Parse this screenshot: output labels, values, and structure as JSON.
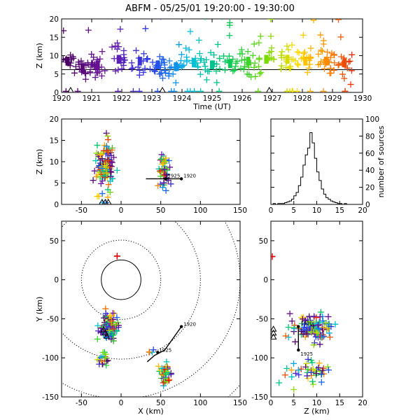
{
  "title": "ABFM - 05/25/01 19:20:00 - 19:30:00",
  "chart_data": [
    {
      "id": "time_height",
      "type": "scatter",
      "xlabel": "Time (UT)",
      "ylabel": "Z (km)",
      "xlim": [
        1920,
        1930
      ],
      "ylim": [
        0,
        20
      ],
      "xticks": [
        "1920",
        "1921",
        "1922",
        "1923",
        "1924",
        "1925",
        "1926",
        "1927",
        "1928",
        "1929",
        "1930"
      ],
      "yticks": [
        "0",
        "5",
        "10",
        "15",
        "20"
      ],
      "reference_line_y": 6.2,
      "marker": "plus",
      "color_by_time": true,
      "station_markers_x": [
        1920.3,
        1923.35,
        1926.9
      ],
      "station_markers_y": 0,
      "clusters": [
        {
          "t": 1920.2,
          "z": 8.5,
          "spread": 1.2,
          "n": 14
        },
        {
          "t": 1920.7,
          "z": 6.5,
          "spread": 1.6,
          "n": 18
        },
        {
          "t": 1921.2,
          "z": 7.5,
          "spread": 2.0,
          "n": 24
        },
        {
          "t": 1921.9,
          "z": 9.0,
          "spread": 2.3,
          "n": 26
        },
        {
          "t": 1922.6,
          "z": 8.5,
          "spread": 2.0,
          "n": 20
        },
        {
          "t": 1923.2,
          "z": 7.5,
          "spread": 2.0,
          "n": 22
        },
        {
          "t": 1923.8,
          "z": 7.0,
          "spread": 1.8,
          "n": 20
        },
        {
          "t": 1924.4,
          "z": 8.0,
          "spread": 2.0,
          "n": 22
        },
        {
          "t": 1925.0,
          "z": 7.5,
          "spread": 2.0,
          "n": 20
        },
        {
          "t": 1925.6,
          "z": 7.8,
          "spread": 1.8,
          "n": 16
        },
        {
          "t": 1926.2,
          "z": 8.5,
          "spread": 2.0,
          "n": 22
        },
        {
          "t": 1926.8,
          "z": 9.0,
          "spread": 2.2,
          "n": 20
        },
        {
          "t": 1927.5,
          "z": 9.0,
          "spread": 2.0,
          "n": 22
        },
        {
          "t": 1928.1,
          "z": 8.5,
          "spread": 2.0,
          "n": 24
        },
        {
          "t": 1928.8,
          "z": 8.5,
          "spread": 2.2,
          "n": 30
        },
        {
          "t": 1929.4,
          "z": 8.0,
          "spread": 2.2,
          "n": 22
        }
      ]
    },
    {
      "id": "x_height",
      "type": "scatter",
      "xlabel": "",
      "ylabel": "Z (km)",
      "xlim": [
        -75,
        150
      ],
      "ylim": [
        0,
        20
      ],
      "xticks": [
        "-50",
        "0",
        "50",
        "100",
        "150"
      ],
      "yticks": [
        "0",
        "5",
        "10",
        "15",
        "20"
      ],
      "marker": "plus",
      "clusters": [
        {
          "x": -20,
          "z": 8.5,
          "sx": 6,
          "sz": 3.2,
          "n": 120
        },
        {
          "x": 55,
          "z": 7.5,
          "sx": 4,
          "sz": 2.5,
          "n": 50
        }
      ],
      "track_x": [
        56,
        76
      ],
      "track_z": [
        6.0,
        6.0
      ],
      "track_labels": [
        "1925",
        "1920"
      ],
      "station_markers_x": [
        -24,
        -20,
        -16
      ]
    },
    {
      "id": "height_histogram",
      "type": "bar",
      "xlabel": "",
      "ylabel": "number of sources",
      "xlim": [
        0,
        20
      ],
      "ylim": [
        0,
        100
      ],
      "xticks": [
        "0",
        "5",
        "10",
        "15",
        "20"
      ],
      "yticks": [
        "0",
        "20",
        "40",
        "60",
        "80",
        "100"
      ],
      "bin_width": 0.5,
      "bin_start": 0,
      "counts": [
        0,
        1,
        0,
        1,
        1,
        1,
        2,
        3,
        4,
        6,
        10,
        14,
        22,
        32,
        46,
        58,
        66,
        84,
        72,
        54,
        38,
        28,
        18,
        12,
        8,
        6,
        4,
        3,
        2,
        1,
        1,
        0,
        1,
        0,
        0,
        0,
        0,
        0,
        0,
        0
      ]
    },
    {
      "id": "plan_view",
      "type": "scatter",
      "xlabel": "X (km)",
      "ylabel": "Y (km)",
      "xlim": [
        -75,
        150
      ],
      "ylim": [
        -150,
        75
      ],
      "xticks": [
        "-50",
        "0",
        "50",
        "100",
        "150"
      ],
      "yticks": [
        "-150",
        "-100",
        "-50",
        "0",
        "50"
      ],
      "range_rings_km": [
        25,
        50,
        100,
        150,
        200
      ],
      "ring_solid_km": 25,
      "marker": "plus",
      "clusters": [
        {
          "x": -15,
          "y": -62,
          "sx": 5,
          "sy": 9,
          "n": 110
        },
        {
          "x": -22,
          "y": -102,
          "sx": 4,
          "sy": 5,
          "n": 18
        },
        {
          "x": 56,
          "y": -120,
          "sx": 4,
          "sy": 7,
          "n": 40
        },
        {
          "x": 35,
          "y": -92,
          "sx": 4,
          "sy": 3,
          "n": 4
        },
        {
          "x": -5,
          "y": 30,
          "sx": 0.5,
          "sy": 0.5,
          "n": 2
        }
      ],
      "track_x": [
        33,
        42,
        55,
        76
      ],
      "track_y": [
        -105,
        -97,
        -90,
        -60
      ],
      "track_labels": [
        "1925",
        "1920"
      ],
      "station_markers_x": [
        -22,
        -20,
        -18
      ],
      "station_markers_y": [
        -66,
        -70,
        -74
      ]
    },
    {
      "id": "z_y_view",
      "type": "scatter",
      "xlabel": "Z (km)",
      "ylabel": "",
      "xlim": [
        0,
        20
      ],
      "ylim": [
        -150,
        75
      ],
      "xticks": [
        "0",
        "5",
        "10",
        "15",
        "20"
      ],
      "yticks": [
        "-150",
        "-100",
        "-50",
        "0",
        "50"
      ],
      "marker": "plus",
      "clusters": [
        {
          "z": 9.0,
          "y": -62,
          "sz": 2.3,
          "sy": 9,
          "n": 120
        },
        {
          "z": 8.0,
          "y": -118,
          "sz": 2.2,
          "sy": 8,
          "n": 45
        },
        {
          "z": 0.3,
          "y": 30,
          "sz": 0.2,
          "sy": 0.5,
          "n": 2
        }
      ],
      "track_z": [
        6.0,
        6.0
      ],
      "track_y": [
        -60,
        -90
      ],
      "track_labels": [
        "1920",
        "1925"
      ],
      "station_markers_z": [
        0.4,
        0.4,
        0.4
      ],
      "station_markers_y": [
        -65,
        -70,
        -75
      ]
    }
  ]
}
